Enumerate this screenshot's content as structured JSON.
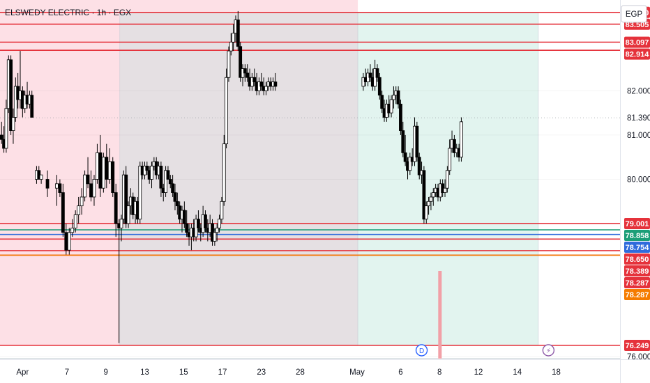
{
  "header": {
    "title": "ELSWEDY ELECTRIC · 1h · EGX",
    "currency_button": "EGP"
  },
  "colors": {
    "candle_up": "#ffffff",
    "candle_down": "#000000",
    "candle_outline": "#000000",
    "level_red": "#e5323b",
    "level_green": "#1b9e77",
    "level_blue": "#2f6bdc",
    "tag_orange": "#f57c00",
    "zone_left": "#fde0e6",
    "zone_middle": "#e5e0e3",
    "zone_right": "#e2f4ef",
    "volume_spike": "#f2a0a7"
  },
  "markers": [
    {
      "name": "dividend-marker",
      "label": "D",
      "x": 51.5
    },
    {
      "name": "lightning-marker",
      "label": "⚡",
      "x": 67.8
    }
  ],
  "chart_data": {
    "type": "candlestick",
    "ylim": [
      75.95,
      84.05
    ],
    "xlim": [
      -2.7,
      77
    ],
    "x_ticks": [
      {
        "label": "Apr",
        "x": 0.2
      },
      {
        "label": "7",
        "x": 5.9
      },
      {
        "label": "9",
        "x": 10.9
      },
      {
        "label": "13",
        "x": 15.9
      },
      {
        "label": "15",
        "x": 20.9
      },
      {
        "label": "17",
        "x": 25.9
      },
      {
        "label": "23",
        "x": 30.9
      },
      {
        "label": "28",
        "x": 35.9
      },
      {
        "label": "May",
        "x": 43.2
      },
      {
        "label": "6",
        "x": 48.8
      },
      {
        "label": "8",
        "x": 53.8
      },
      {
        "label": "12",
        "x": 58.8
      },
      {
        "label": "14",
        "x": 63.8
      },
      {
        "label": "18",
        "x": 68.8
      }
    ],
    "y_ticks": [
      76.0,
      80.0,
      81.0,
      82.0
    ],
    "y_tick_labels": [
      "76.000",
      "80.000",
      "81.000",
      "82.000"
    ],
    "last_price": 81.39,
    "last_price_label": "81.390",
    "zones": [
      {
        "name": "left-zone",
        "x0": -2.7,
        "x1": 43.3,
        "y0": 76.249,
        "y1": 84.05,
        "color": "#fde0e6"
      },
      {
        "name": "middle-zone",
        "x0": 12.7,
        "x1": 43.3,
        "y0": 76.249,
        "y1": 83.77,
        "color": "#e5e0e3"
      },
      {
        "name": "right-zone",
        "x0": 43.3,
        "x1": 66.5,
        "y0": 76.249,
        "y1": 83.77,
        "color": "#e2f4ef"
      }
    ],
    "levels": [
      {
        "value": 83.77,
        "label": "83.770",
        "color": "#e5323b"
      },
      {
        "value": 83.505,
        "label": "83.505",
        "color": "#e5323b"
      },
      {
        "value": 83.097,
        "label": "83.097",
        "color": "#e5323b"
      },
      {
        "value": 82.914,
        "label": "82.914",
        "color": "#e5323b"
      },
      {
        "value": 79.001,
        "label": "79.001",
        "color": "#e5323b"
      },
      {
        "value": 78.858,
        "label": "78.858",
        "color": "#1b9e77"
      },
      {
        "value": 78.754,
        "label": "78.754",
        "color": "#2f6bdc"
      },
      {
        "value": 78.65,
        "label": "78.650",
        "color": "#e5323b"
      },
      {
        "value": 78.389,
        "label": "78.389",
        "color": "#e5323b"
      },
      {
        "value": 78.287,
        "label": "78.287",
        "color": "#e5323b"
      },
      {
        "value": 78.287,
        "label": "78.287",
        "color": "#f57c00"
      },
      {
        "value": 76.249,
        "label": "76.249",
        "color": "#e5323b"
      }
    ],
    "candles": [
      [
        -2.5,
        81.0,
        81.3,
        80.8,
        80.9
      ],
      [
        -2.2,
        80.9,
        81.2,
        80.6,
        80.7
      ],
      [
        -1.9,
        80.7,
        81.8,
        80.6,
        81.6
      ],
      [
        -1.6,
        81.6,
        82.8,
        81.5,
        82.7
      ],
      [
        -1.3,
        82.7,
        82.8,
        81.0,
        81.1
      ],
      [
        -1.0,
        81.1,
        81.6,
        80.8,
        81.4
      ],
      [
        -0.7,
        81.4,
        82.3,
        81.3,
        82.1
      ],
      [
        -0.4,
        82.1,
        82.4,
        81.6,
        81.8
      ],
      [
        -0.1,
        81.8,
        82.9,
        81.6,
        82.0
      ],
      [
        0.2,
        82.0,
        82.1,
        81.4,
        81.6
      ],
      [
        0.5,
        81.6,
        82.0,
        81.5,
        81.9
      ],
      [
        0.8,
        81.9,
        82.2,
        81.6,
        81.7
      ],
      [
        1.1,
        81.7,
        82.0,
        81.6,
        81.9
      ],
      [
        1.4,
        81.9,
        82.0,
        81.4,
        81.4
      ],
      [
        2.0,
        80.0,
        80.3,
        79.9,
        80.2
      ],
      [
        2.3,
        80.2,
        80.3,
        80.0,
        80.0
      ],
      [
        2.6,
        80.0,
        80.1,
        79.9,
        80.1
      ],
      [
        3.4,
        80.0,
        80.2,
        79.6,
        79.8
      ],
      [
        4.6,
        79.8,
        80.1,
        79.4,
        79.9
      ],
      [
        5.0,
        79.9,
        80.0,
        79.6,
        79.7
      ],
      [
        5.4,
        79.7,
        79.9,
        78.7,
        78.8
      ],
      [
        5.8,
        78.8,
        79.0,
        78.3,
        78.4
      ],
      [
        6.2,
        78.4,
        78.9,
        78.3,
        78.8
      ],
      [
        6.6,
        78.8,
        79.1,
        78.7,
        78.9
      ],
      [
        7.0,
        78.9,
        79.3,
        78.8,
        79.2
      ],
      [
        7.4,
        79.2,
        79.6,
        79.0,
        79.4
      ],
      [
        7.8,
        79.4,
        79.8,
        79.2,
        79.6
      ],
      [
        8.2,
        79.6,
        80.2,
        79.5,
        80.1
      ],
      [
        8.6,
        80.1,
        80.5,
        79.8,
        79.9
      ],
      [
        9.0,
        79.9,
        80.2,
        79.5,
        79.6
      ],
      [
        9.4,
        79.6,
        80.1,
        79.4,
        80.0
      ],
      [
        9.8,
        80.0,
        80.8,
        79.9,
        80.6
      ],
      [
        10.2,
        80.6,
        81.0,
        79.6,
        79.8
      ],
      [
        10.6,
        79.8,
        80.6,
        79.7,
        80.5
      ],
      [
        11.0,
        80.5,
        80.8,
        79.8,
        80.0
      ],
      [
        11.4,
        80.0,
        80.7,
        79.9,
        80.4
      ],
      [
        11.8,
        80.4,
        80.5,
        79.6,
        79.7
      ],
      [
        12.2,
        79.7,
        79.9,
        78.7,
        79.0
      ],
      [
        12.6,
        79.0,
        79.1,
        76.3,
        78.9
      ],
      [
        12.9,
        78.9,
        79.2,
        78.6,
        79.1
      ],
      [
        13.2,
        79.1,
        80.2,
        79.0,
        80.1
      ],
      [
        13.5,
        80.1,
        80.3,
        78.9,
        79.0
      ],
      [
        13.8,
        79.0,
        79.5,
        78.9,
        79.4
      ],
      [
        14.1,
        79.4,
        79.8,
        79.2,
        79.6
      ],
      [
        14.4,
        79.6,
        79.7,
        79.1,
        79.2
      ],
      [
        14.7,
        79.2,
        79.6,
        79.0,
        79.5
      ],
      [
        15.0,
        79.5,
        79.6,
        79.0,
        79.1
      ],
      [
        15.3,
        79.1,
        80.4,
        79.0,
        80.3
      ],
      [
        15.6,
        80.3,
        80.4,
        80.0,
        80.1
      ],
      [
        15.9,
        80.1,
        80.4,
        80.0,
        80.3
      ],
      [
        16.2,
        80.3,
        80.4,
        80.1,
        80.2
      ],
      [
        16.5,
        80.2,
        80.3,
        79.9,
        80.0
      ],
      [
        16.8,
        80.0,
        80.4,
        79.8,
        80.3
      ],
      [
        17.1,
        80.3,
        80.5,
        80.2,
        80.4
      ],
      [
        17.4,
        80.4,
        80.5,
        80.0,
        80.1
      ],
      [
        17.7,
        80.1,
        80.4,
        80.0,
        80.3
      ],
      [
        18.0,
        80.3,
        80.4,
        79.6,
        79.8
      ],
      [
        18.3,
        79.8,
        79.9,
        79.5,
        79.7
      ],
      [
        18.6,
        79.7,
        80.3,
        79.6,
        80.2
      ],
      [
        18.9,
        80.2,
        80.3,
        80.0,
        80.0
      ],
      [
        19.2,
        80.0,
        80.1,
        79.8,
        79.9
      ],
      [
        19.5,
        79.9,
        80.1,
        79.6,
        79.7
      ],
      [
        19.8,
        79.7,
        79.9,
        79.3,
        79.5
      ],
      [
        20.1,
        79.5,
        79.7,
        79.2,
        79.4
      ],
      [
        20.4,
        79.4,
        79.5,
        79.0,
        79.1
      ],
      [
        20.7,
        79.1,
        79.4,
        78.8,
        79.3
      ],
      [
        21.0,
        79.3,
        79.5,
        78.9,
        79.0
      ],
      [
        21.3,
        79.0,
        79.3,
        78.7,
        78.8
      ],
      [
        21.6,
        78.8,
        79.0,
        78.5,
        78.7
      ],
      [
        21.9,
        78.7,
        79.0,
        78.4,
        78.9
      ],
      [
        22.2,
        78.9,
        79.1,
        78.6,
        78.7
      ],
      [
        22.5,
        78.7,
        79.2,
        78.6,
        79.1
      ],
      [
        22.8,
        79.1,
        79.3,
        78.8,
        78.9
      ],
      [
        23.1,
        78.9,
        79.0,
        78.6,
        78.8
      ],
      [
        23.4,
        78.8,
        79.4,
        78.7,
        79.2
      ],
      [
        23.7,
        79.2,
        79.3,
        78.8,
        78.9
      ],
      [
        24.0,
        78.9,
        79.1,
        78.6,
        78.8
      ],
      [
        24.3,
        78.8,
        79.2,
        78.7,
        79.0
      ],
      [
        24.6,
        79.0,
        79.1,
        78.5,
        78.6
      ],
      [
        24.9,
        78.6,
        78.9,
        78.5,
        78.8
      ],
      [
        25.2,
        78.8,
        79.0,
        78.6,
        78.9
      ],
      [
        25.5,
        78.9,
        79.2,
        78.8,
        79.1
      ],
      [
        25.8,
        79.1,
        79.6,
        79.0,
        79.5
      ],
      [
        26.1,
        79.5,
        81.0,
        79.4,
        80.8
      ],
      [
        26.4,
        80.8,
        82.5,
        80.7,
        82.3
      ],
      [
        26.7,
        82.3,
        83.0,
        82.2,
        82.9
      ],
      [
        27.0,
        82.9,
        83.3,
        82.8,
        83.1
      ],
      [
        27.3,
        83.1,
        83.5,
        82.9,
        83.3
      ],
      [
        27.6,
        83.3,
        83.7,
        83.1,
        83.6
      ],
      [
        27.9,
        83.6,
        83.8,
        82.9,
        83.0
      ],
      [
        28.2,
        83.0,
        83.1,
        82.2,
        82.3
      ],
      [
        28.5,
        82.3,
        82.6,
        82.1,
        82.5
      ],
      [
        28.8,
        82.5,
        82.6,
        82.2,
        82.4
      ],
      [
        29.1,
        82.4,
        82.6,
        82.2,
        82.3
      ],
      [
        29.4,
        82.3,
        82.5,
        82.0,
        82.1
      ],
      [
        29.7,
        82.1,
        82.4,
        82.0,
        82.3
      ],
      [
        30.0,
        82.3,
        82.5,
        82.1,
        82.2
      ],
      [
        30.3,
        82.2,
        82.4,
        81.9,
        82.0
      ],
      [
        30.6,
        82.0,
        82.3,
        81.9,
        82.2
      ],
      [
        30.9,
        82.2,
        82.4,
        82.0,
        82.1
      ],
      [
        31.2,
        82.1,
        82.3,
        81.9,
        82.0
      ],
      [
        31.5,
        82.0,
        82.2,
        81.9,
        82.1
      ],
      [
        31.8,
        82.1,
        82.3,
        82.0,
        82.2
      ],
      [
        32.1,
        82.2,
        82.3,
        82.0,
        82.1
      ],
      [
        32.4,
        82.1,
        82.3,
        82.0,
        82.2
      ],
      [
        32.7,
        82.2,
        82.4,
        82.0,
        82.1
      ],
      [
        44.0,
        82.1,
        82.4,
        82.0,
        82.3
      ],
      [
        44.3,
        82.3,
        82.5,
        82.1,
        82.2
      ],
      [
        44.6,
        82.2,
        82.5,
        82.1,
        82.4
      ],
      [
        44.9,
        82.4,
        82.6,
        82.2,
        82.3
      ],
      [
        45.2,
        82.3,
        82.5,
        82.0,
        82.1
      ],
      [
        45.5,
        82.1,
        82.7,
        82.0,
        82.5
      ],
      [
        45.8,
        82.5,
        82.6,
        82.2,
        82.3
      ],
      [
        46.1,
        82.3,
        82.4,
        81.8,
        81.9
      ],
      [
        46.4,
        81.9,
        82.0,
        81.5,
        81.6
      ],
      [
        46.7,
        81.6,
        81.8,
        81.3,
        81.4
      ],
      [
        47.0,
        81.4,
        81.8,
        81.3,
        81.7
      ],
      [
        47.3,
        81.7,
        81.9,
        81.4,
        81.5
      ],
      [
        47.6,
        81.5,
        81.9,
        81.4,
        81.8
      ],
      [
        47.9,
        81.8,
        82.1,
        81.6,
        81.9
      ],
      [
        48.2,
        81.9,
        82.1,
        81.7,
        82.0
      ],
      [
        48.5,
        82.0,
        82.1,
        81.6,
        81.7
      ],
      [
        48.8,
        81.7,
        81.8,
        81.0,
        81.1
      ],
      [
        49.1,
        81.1,
        81.3,
        80.5,
        80.6
      ],
      [
        49.4,
        80.6,
        81.0,
        80.3,
        80.4
      ],
      [
        49.7,
        80.4,
        80.5,
        80.0,
        80.2
      ],
      [
        50.0,
        80.2,
        80.6,
        80.1,
        80.5
      ],
      [
        50.3,
        80.5,
        80.7,
        80.3,
        80.4
      ],
      [
        50.6,
        80.4,
        81.4,
        80.3,
        81.2
      ],
      [
        50.9,
        81.2,
        81.3,
        80.4,
        80.5
      ],
      [
        51.2,
        80.5,
        80.6,
        80.0,
        80.1
      ],
      [
        51.5,
        80.1,
        80.4,
        79.9,
        80.2
      ],
      [
        51.8,
        80.2,
        80.3,
        79.0,
        79.1
      ],
      [
        52.1,
        79.1,
        79.5,
        79.0,
        79.4
      ],
      [
        52.4,
        79.4,
        79.6,
        79.2,
        79.5
      ],
      [
        52.7,
        79.5,
        79.7,
        79.3,
        79.6
      ],
      [
        53.0,
        79.6,
        79.8,
        79.4,
        79.7
      ],
      [
        53.3,
        79.7,
        79.9,
        79.6,
        79.8
      ],
      [
        53.6,
        79.8,
        79.9,
        79.5,
        79.6
      ],
      [
        53.9,
        79.6,
        80.0,
        79.5,
        79.9
      ],
      [
        54.2,
        79.9,
        80.0,
        79.6,
        79.7
      ],
      [
        54.5,
        79.7,
        80.0,
        79.6,
        79.8
      ],
      [
        54.8,
        79.8,
        80.3,
        79.7,
        80.2
      ],
      [
        55.1,
        80.2,
        80.9,
        80.1,
        80.7
      ],
      [
        55.4,
        80.7,
        81.1,
        80.6,
        80.9
      ],
      [
        55.7,
        80.9,
        81.0,
        80.5,
        80.6
      ],
      [
        56.0,
        80.6,
        80.8,
        80.5,
        80.7
      ],
      [
        56.3,
        80.7,
        80.8,
        80.4,
        80.5
      ],
      [
        56.6,
        80.5,
        81.4,
        80.4,
        81.3
      ]
    ]
  }
}
